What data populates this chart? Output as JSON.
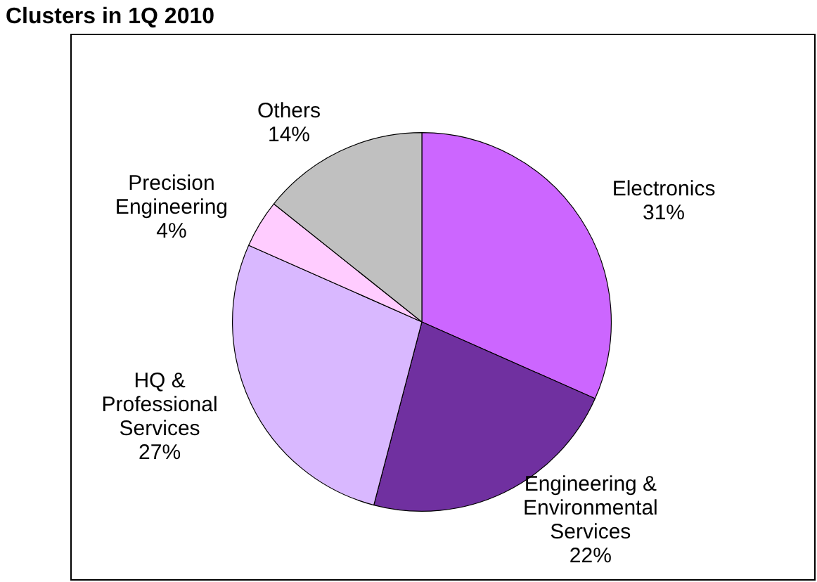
{
  "chart_data": {
    "type": "pie",
    "title": "Clusters in 1Q 2010",
    "categories": [
      "Electronics",
      "Engineering & Environmental Services",
      "HQ & Professional Services",
      "Precision Engineering",
      "Others"
    ],
    "values": [
      31,
      22,
      27,
      4,
      14
    ],
    "value_labels": [
      "31%",
      "22%",
      "27%",
      "4%",
      "14%"
    ],
    "colors": [
      "#cc66ff",
      "#7030a0",
      "#d9b8ff",
      "#ffccff",
      "#c0c0c0"
    ],
    "legend": false
  }
}
